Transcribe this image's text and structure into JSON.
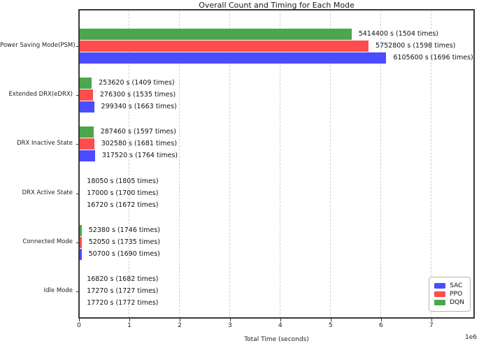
{
  "title": "Overall Count and Timing for Each Mode",
  "xlabel": "Total Time (seconds)",
  "x_multiplier": "1e6",
  "label_format": "{value} s ({count} times)",
  "colors": {
    "sac_blue": "#4c4cff",
    "ppo_red": "#ff4c4c",
    "dqn_green": "#4ca64c",
    "grid": "#cfcfcf",
    "frame": "#3a3a3a"
  },
  "legend": {
    "position": "lower right",
    "entries": [
      {
        "label": "SAC",
        "color": "#4c4cff"
      },
      {
        "label": "PPO",
        "color": "#ff4c4c"
      },
      {
        "label": "DQN",
        "color": "#4ca64c"
      }
    ]
  },
  "chart_data": {
    "type": "bar",
    "orientation": "horizontal",
    "title": "Overall Count and Timing for Each Mode",
    "xlabel": "Total Time (seconds)",
    "ylabel": "",
    "grid": "vertical dashed",
    "xlim": [
      0,
      7850000
    ],
    "x_ticks": [
      {
        "value": 0,
        "label": "0"
      },
      {
        "value": 1000000,
        "label": "1"
      },
      {
        "value": 2000000,
        "label": "2"
      },
      {
        "value": 3000000,
        "label": "3"
      },
      {
        "value": 4000000,
        "label": "4"
      },
      {
        "value": 5000000,
        "label": "5"
      },
      {
        "value": 6000000,
        "label": "6"
      },
      {
        "value": 7000000,
        "label": "7"
      }
    ],
    "categories": [
      "Power Saving Mode(PSM)",
      "Extended DRX(eDRX)",
      "DRX Inactive State",
      "DRX Active State",
      "Connected Mode",
      "Idle Mode"
    ],
    "series": [
      {
        "name": "SAC",
        "color": "#4c4cff",
        "values": [
          6105600,
          299340,
          317520,
          16720,
          50700,
          17720
        ],
        "counts": [
          1696,
          1663,
          1764,
          1672,
          1690,
          1772
        ]
      },
      {
        "name": "PPO",
        "color": "#ff4c4c",
        "values": [
          5752800,
          276300,
          302580,
          17000,
          52050,
          17270
        ],
        "counts": [
          1598,
          1535,
          1681,
          1700,
          1735,
          1727
        ]
      },
      {
        "name": "DQN",
        "color": "#4ca64c",
        "values": [
          5414400,
          253620,
          287460,
          18050,
          52380,
          16820
        ],
        "counts": [
          1504,
          1409,
          1597,
          1805,
          1746,
          1682
        ]
      }
    ],
    "bar_display_order_top_to_bottom": [
      "DQN",
      "PPO",
      "SAC"
    ]
  }
}
